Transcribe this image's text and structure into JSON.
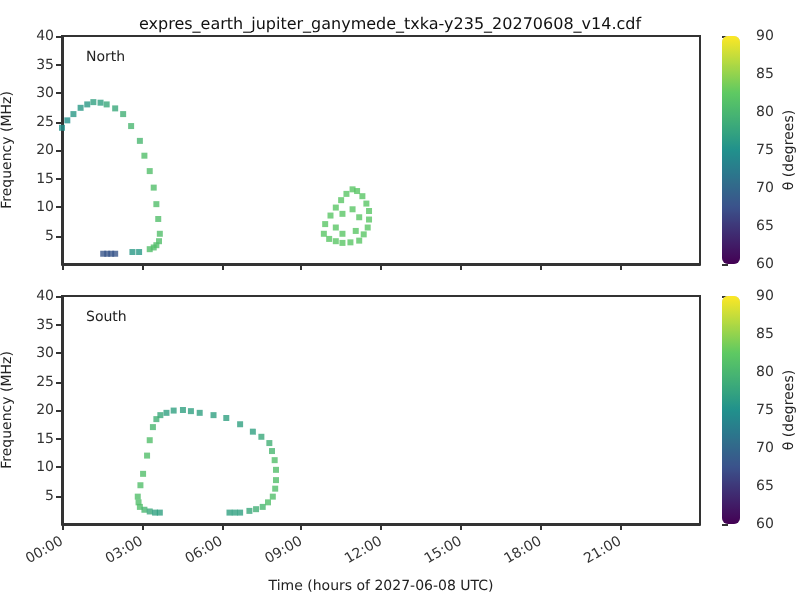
{
  "chart_data": [
    {
      "type": "scatter",
      "title": "expres_earth_jupiter_ganymede_txka-y235_20270608_v14.cdf",
      "ylabel": "Frequency (MHz)",
      "clabel": "θ (degrees)",
      "annotations": [
        "North"
      ],
      "marker": "square",
      "tick_labels": "y",
      "xlim": [
        0,
        24
      ],
      "xticks": [
        {
          "value": 0,
          "label": null
        },
        {
          "value": 3,
          "label": null
        },
        {
          "value": 6,
          "label": null
        },
        {
          "value": 9,
          "label": null
        },
        {
          "value": 12,
          "label": null
        },
        {
          "value": 15,
          "label": null
        },
        {
          "value": 18,
          "label": null
        },
        {
          "value": 21,
          "label": null
        }
      ],
      "ylim": [
        0,
        40
      ],
      "yticks": [
        5,
        10,
        15,
        20,
        25,
        30,
        35,
        40
      ],
      "clim": [
        60,
        90
      ],
      "cticks": [
        60,
        65,
        70,
        75,
        80,
        85,
        90
      ],
      "series": [
        {
          "x": [
            0,
            0.2,
            0.43,
            0.7,
            0.95,
            1.18,
            1.45,
            1.68,
            2.0,
            2.3,
            2.6,
            2.93,
            3.1,
            3.3,
            3.45,
            3.55,
            3.62,
            3.68,
            3.65,
            3.55,
            3.45,
            3.3,
            1.55,
            1.7,
            1.85,
            2.0,
            2.65,
            2.9,
            9.85,
            9.9,
            10.1,
            10.3,
            10.5,
            10.7,
            10.93,
            11.1,
            11.3,
            11.45,
            11.55,
            11.55,
            11.5,
            11.35,
            11.18,
            10.85,
            10.55,
            10.3,
            10.05,
            10.3,
            10.55,
            10.93,
            11.18,
            11.05,
            10.55
          ],
          "values": [
            23.9,
            25.2,
            26.3,
            27.4,
            28.0,
            28.4,
            28.3,
            28.0,
            27.3,
            26.3,
            24.2,
            21.6,
            19.0,
            16.3,
            13.4,
            10.5,
            7.9,
            5.3,
            4.0,
            3.3,
            2.9,
            2.6,
            1.8,
            1.8,
            1.8,
            1.8,
            2.1,
            2.1,
            5.3,
            7.0,
            8.5,
            9.9,
            11.2,
            12.3,
            13.1,
            12.8,
            11.9,
            10.6,
            9.3,
            7.8,
            6.4,
            5.2,
            4.1,
            3.8,
            3.7,
            4.0,
            4.4,
            6.4,
            8.8,
            9.6,
            8.2,
            5.8,
            5.3
          ],
          "cvalues": [
            75,
            75,
            76,
            76,
            76,
            77,
            77,
            78,
            78,
            79,
            80,
            80,
            81,
            81,
            81,
            81,
            81,
            81,
            81,
            81,
            81,
            81,
            68,
            68,
            68,
            68,
            76,
            76,
            82,
            82,
            82,
            82,
            82,
            82,
            82,
            82,
            82,
            82,
            82,
            82,
            82,
            82,
            82,
            82,
            82,
            82,
            82,
            82,
            82,
            82,
            82,
            82,
            82
          ]
        }
      ]
    },
    {
      "type": "scatter",
      "xlabel": "Time (hours of 2027-06-08 UTC)",
      "ylabel": "Frequency (MHz)",
      "clabel": "θ (degrees)",
      "annotations": [
        "South"
      ],
      "marker": "square",
      "xlim": [
        0,
        24
      ],
      "xticks": [
        {
          "value": 0,
          "label": "00:00"
        },
        {
          "value": 3,
          "label": "03:00"
        },
        {
          "value": 6,
          "label": "06:00"
        },
        {
          "value": 9,
          "label": "09:00"
        },
        {
          "value": 12,
          "label": "12:00"
        },
        {
          "value": 15,
          "label": "15:00"
        },
        {
          "value": 18,
          "label": "18:00"
        },
        {
          "value": 21,
          "label": "21:00"
        }
      ],
      "ylim": [
        0,
        40
      ],
      "yticks": [
        5,
        10,
        15,
        20,
        25,
        30,
        35,
        40
      ],
      "clim": [
        60,
        90
      ],
      "cticks": [
        60,
        65,
        70,
        75,
        80,
        85,
        90
      ],
      "series": [
        {
          "x": [
            6.3,
            6.5,
            6.7,
            7.05,
            7.3,
            7.55,
            7.75,
            7.93,
            8.02,
            8.05,
            8.05,
            8.0,
            7.9,
            7.8,
            7.5,
            7.18,
            6.7,
            6.18,
            5.7,
            5.18,
            4.85,
            4.55,
            4.2,
            3.93,
            3.7,
            3.55,
            3.42,
            3.3,
            3.2,
            3.05,
            2.95,
            2.85,
            2.88,
            2.93,
            3.1,
            3.3,
            3.5,
            3.68
          ],
          "values": [
            2.0,
            2.0,
            2.0,
            2.3,
            2.6,
            3.0,
            3.8,
            4.8,
            6.2,
            7.7,
            9.5,
            11.2,
            12.8,
            14.2,
            15.3,
            16.2,
            17.5,
            18.6,
            19.1,
            19.5,
            19.8,
            20.0,
            19.9,
            19.5,
            19.1,
            18.4,
            17.0,
            14.7,
            12.0,
            8.8,
            6.8,
            4.8,
            3.8,
            3.0,
            2.5,
            2.2,
            2.0,
            2.0
          ],
          "cvalues": [
            77,
            77,
            77,
            78,
            79,
            80,
            81,
            81,
            81,
            81,
            81,
            81,
            80,
            79,
            78,
            77,
            77,
            77,
            77,
            77,
            77,
            77,
            77,
            77,
            78,
            79,
            80,
            81,
            81,
            81,
            81,
            81,
            81,
            81,
            80,
            78,
            77,
            77
          ]
        }
      ]
    }
  ]
}
